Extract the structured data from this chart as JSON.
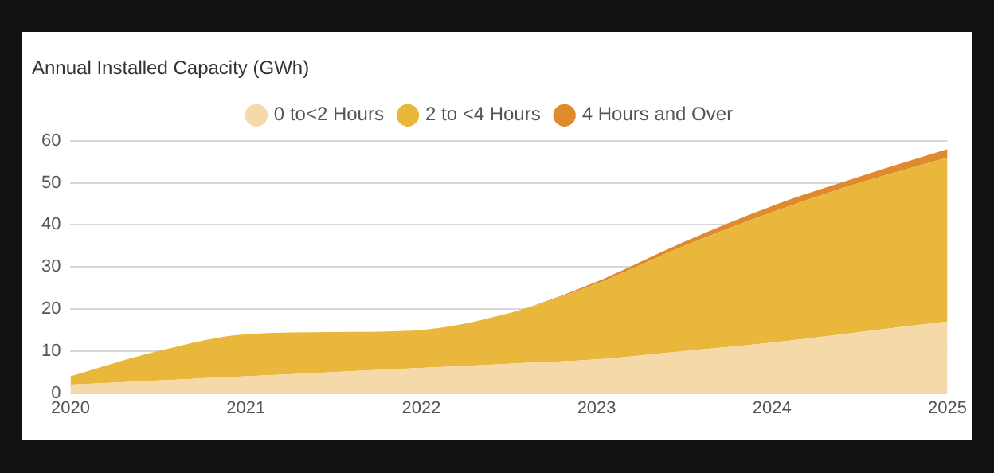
{
  "chart_data": {
    "type": "area",
    "ylabel": "Annual Installed Capacity (GWh)",
    "stacked": true,
    "x": [
      2020,
      2020.5,
      2021,
      2021.5,
      2022,
      2022.5,
      2023,
      2023.5,
      2024,
      2024.5,
      2025
    ],
    "series": [
      {
        "name": "0 to<2 Hours",
        "color": "#f5d9a8",
        "values": [
          2,
          3,
          4,
          5,
          6,
          7,
          8,
          10,
          12,
          14.5,
          17
        ]
      },
      {
        "name": "2 to <4 Hours",
        "color": "#e9b73c",
        "values": [
          2,
          7,
          10,
          9.5,
          9,
          12,
          18,
          25,
          31,
          35.5,
          39
        ]
      },
      {
        "name": "4 Hours and Over",
        "color": "#e08a2e",
        "values": [
          0,
          0,
          0,
          0,
          0,
          0,
          0.5,
          1,
          1.5,
          1.5,
          2
        ]
      }
    ],
    "xlim": [
      2020,
      2025
    ],
    "xticks": [
      2020,
      2021,
      2022,
      2023,
      2024,
      2025
    ],
    "ylim": [
      0,
      60
    ],
    "yticks": [
      0,
      10,
      20,
      30,
      40,
      50,
      60
    ],
    "grid": "y",
    "legend": "top",
    "marker": "none"
  }
}
